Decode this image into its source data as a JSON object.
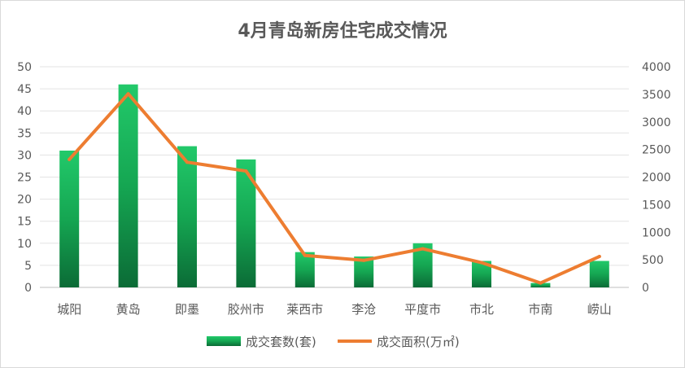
{
  "chart_data": {
    "type": "bar",
    "title": "4月青岛新房住宅成交情况",
    "categories": [
      "城阳",
      "黄岛",
      "即墨",
      "胶州市",
      "莱西市",
      "李沧",
      "平度市",
      "市北",
      "市南",
      "崂山"
    ],
    "series": [
      {
        "name": "成交套数(套)",
        "type": "bar",
        "axis": "left",
        "color": "#1fbf5f",
        "values": [
          31,
          46,
          32,
          29,
          8,
          7,
          10,
          6,
          1,
          6
        ]
      },
      {
        "name": "成交面积(万㎡)",
        "type": "line",
        "axis": "right",
        "color": "#ed7d31",
        "values": [
          2320,
          3510,
          2270,
          2110,
          580,
          490,
          700,
          450,
          80,
          560
        ]
      }
    ],
    "y_left": {
      "min": 0,
      "max": 50,
      "step": 5
    },
    "y_right": {
      "min": 0,
      "max": 4000,
      "step": 500
    },
    "grid": true,
    "legend_position": "bottom"
  }
}
